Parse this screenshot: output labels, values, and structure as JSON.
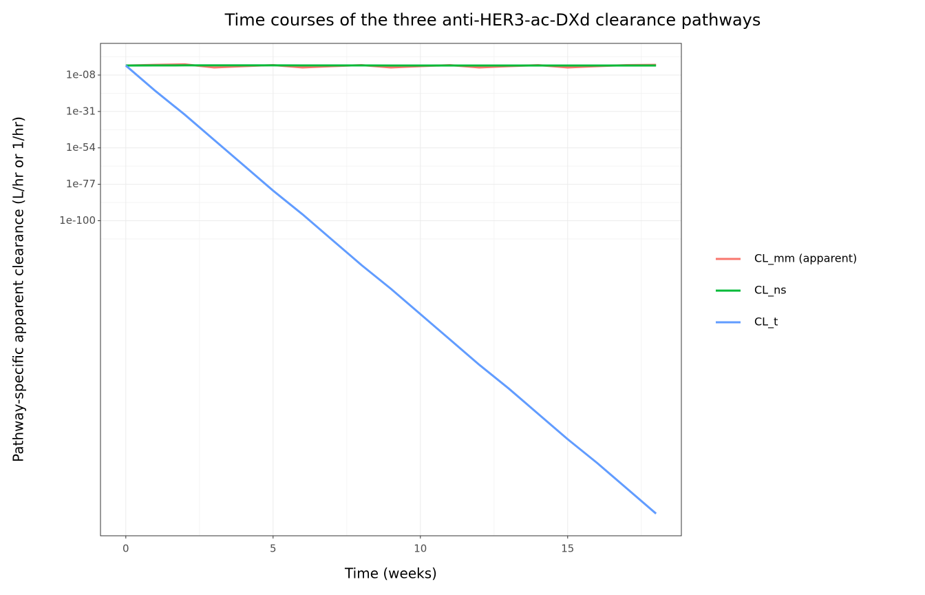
{
  "chart_data": {
    "type": "line",
    "title": "Time courses of the three anti-HER3-ac-DXd clearance pathways",
    "x_label": "Time (weeks)",
    "y_label": "Pathway-specific apparent clearance (L/hr or 1/hr)",
    "x": [
      0,
      1,
      2,
      3,
      4,
      5,
      6,
      7,
      8,
      9,
      10,
      11,
      12,
      13,
      14,
      15,
      16,
      17,
      18
    ],
    "series": [
      {
        "name": "CL_mm (apparent)",
        "color": "#f8766d",
        "values": [
          0.01,
          0.03,
          0.06,
          0.0006,
          0.004,
          0.02,
          0.0006,
          0.004,
          0.02,
          0.0006,
          0.004,
          0.02,
          0.0006,
          0.004,
          0.02,
          0.0006,
          0.004,
          0.02,
          0.03
        ]
      },
      {
        "name": "CL_ns",
        "color": "#00ba38",
        "values": [
          0.01,
          0.012,
          0.013,
          0.013,
          0.013,
          0.013,
          0.012,
          0.012,
          0.012,
          0.011,
          0.011,
          0.011,
          0.01,
          0.01,
          0.01,
          0.01,
          0.01,
          0.01,
          0.01
        ]
      },
      {
        "name": "CL_t",
        "color": "#619cff",
        "values": [
          0.01,
          1e-18,
          1e-33,
          1e-49,
          1e-65,
          1e-81,
          1e-96,
          1e-112,
          1e-128,
          1e-143,
          1e-159,
          1e-175,
          1e-191,
          1e-206,
          1e-222,
          1e-238,
          1e-253,
          1e-269,
          1e-285
        ]
      }
    ],
    "xlim": [
      -0.86,
      18.86
    ],
    "xticks": [
      0,
      5,
      10,
      15
    ],
    "ylim": [
      1e-299,
      1000000000000.0
    ],
    "log_y": true,
    "yticks": [
      {
        "value": 1e-08,
        "label": "1e-08"
      },
      {
        "value": 1e-31,
        "label": "1e-31"
      },
      {
        "value": 1e-54,
        "label": "1e-54"
      },
      {
        "value": 1e-77,
        "label": "1e-77"
      },
      {
        "value": 1e-100,
        "label": "1e-100"
      }
    ],
    "grid": true,
    "legend": "right"
  }
}
